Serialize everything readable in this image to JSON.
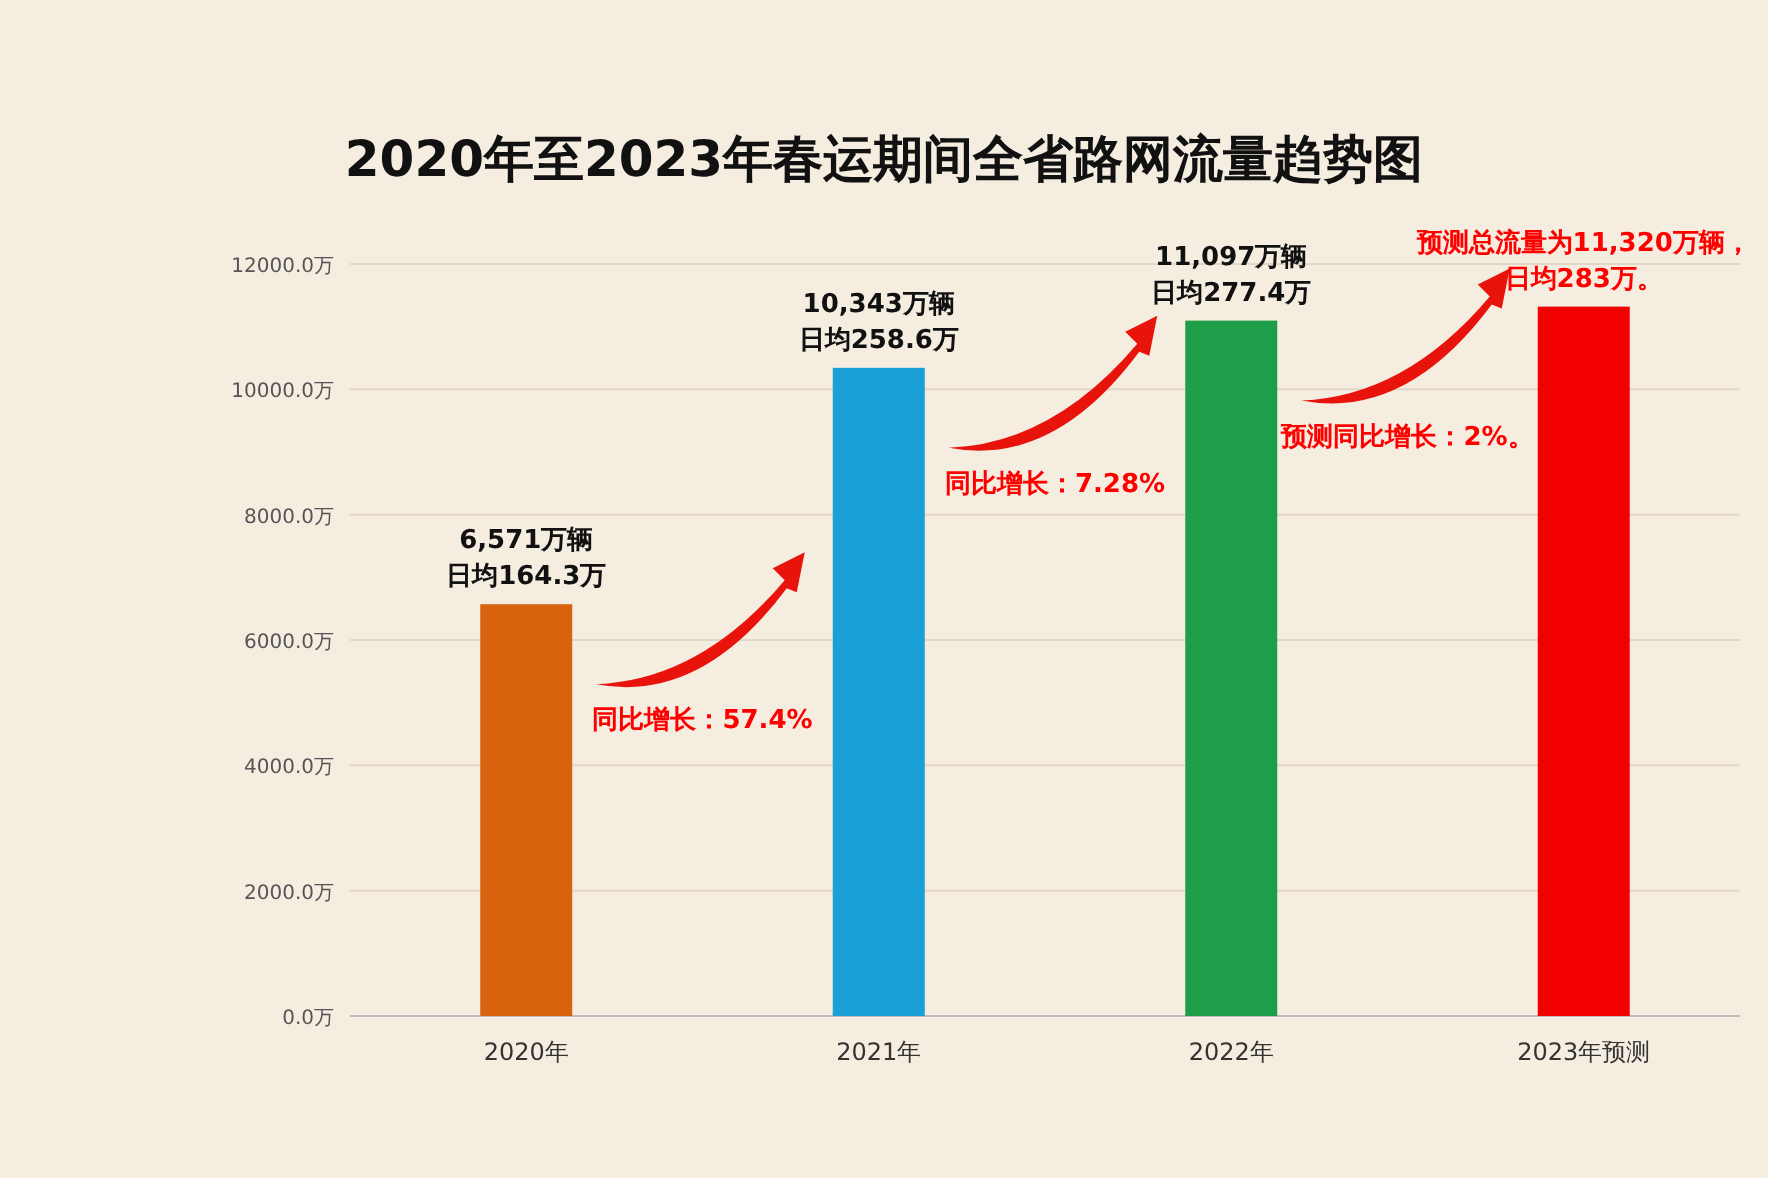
{
  "chart_data": {
    "type": "bar",
    "title": "2020年至2023年春运期间全省路网流量趋势图",
    "categories": [
      "2020年",
      "2021年",
      "2022年",
      "2023年预测"
    ],
    "values": [
      6571,
      10343,
      11097,
      11320
    ],
    "colors": [
      "#d9620f",
      "#1a9fd6",
      "#1e9e48",
      "#f20000"
    ],
    "value_labels": [
      "6,571万辆",
      "10,343万辆",
      "11,097万辆",
      "预测总流量为11,320万辆，"
    ],
    "ylim": [
      0,
      12000
    ],
    "yticks": [
      {
        "value": 0,
        "label": "0.0万"
      },
      {
        "value": 2000,
        "label": "2000.0万"
      },
      {
        "value": 4000,
        "label": "4000.0万"
      },
      {
        "value": 6000,
        "label": "6000.0万"
      },
      {
        "value": 8000,
        "label": "8000.0万"
      },
      {
        "value": 10000,
        "label": "10000.0万"
      },
      {
        "value": 12000,
        "label": "12000.0万"
      }
    ],
    "grid": "y",
    "annotations": [
      "同比增长：57.4%",
      "同比增长：7.28%",
      "预测同比增长：2%。",
      {
        "text": "日均164.3万",
        "x": "2020年",
        "y": 6571
      },
      {
        "text": "日均258.6万",
        "x": "2021年",
        "y": 10343
      },
      {
        "text": "日均277.4万",
        "x": "2022年",
        "y": 11097
      },
      {
        "text": "日均283万。",
        "x": "2023年预测",
        "y": 11320
      }
    ]
  }
}
